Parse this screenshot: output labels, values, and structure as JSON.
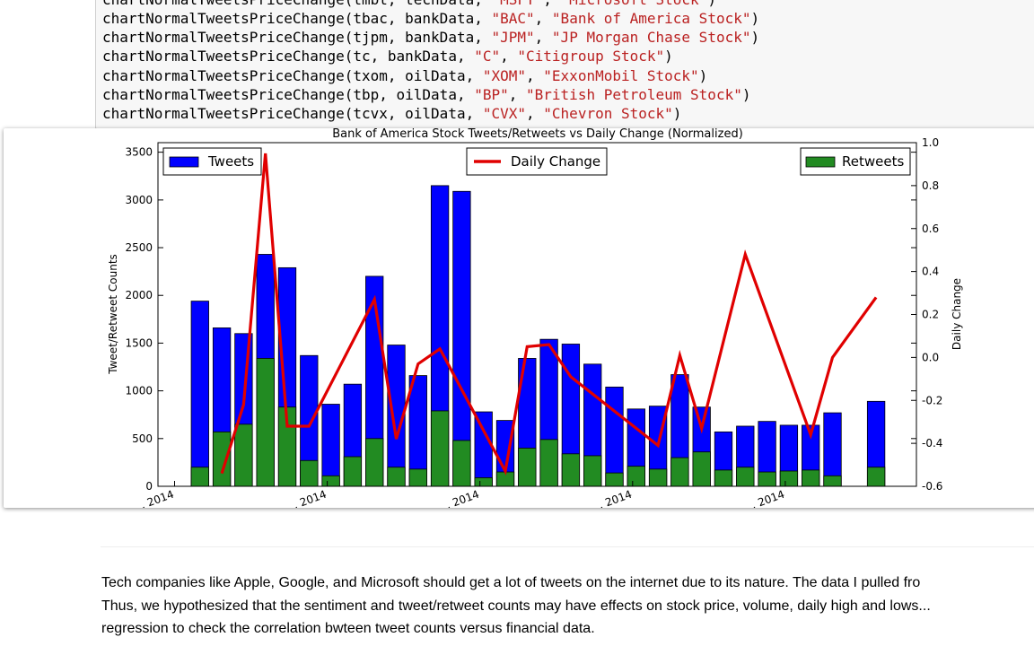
{
  "code_cell": {
    "lines": [
      {
        "fn": "chartNormalTweetsPriceChange(tmbt, techData, ",
        "sym": "\"MSFT\"",
        "mid": ", ",
        "name": "\"Microsoft Stock\"",
        "end": ")"
      },
      {
        "fn": "chartNormalTweetsPriceChange(tbac, bankData, ",
        "sym": "\"BAC\"",
        "mid": ", ",
        "name": "\"Bank of America Stock\"",
        "end": ")"
      },
      {
        "fn": "chartNormalTweetsPriceChange(tjpm, bankData, ",
        "sym": "\"JPM\"",
        "mid": ", ",
        "name": "\"JP Morgan Chase Stock\"",
        "end": ")"
      },
      {
        "fn": "chartNormalTweetsPriceChange(tc, bankData, ",
        "sym": "\"C\"",
        "mid": ", ",
        "name": "\"Citigroup Stock\"",
        "end": ")"
      },
      {
        "fn": "chartNormalTweetsPriceChange(txom, oilData, ",
        "sym": "\"XOM\"",
        "mid": ", ",
        "name": "\"ExxonMobil Stock\"",
        "end": ")"
      },
      {
        "fn": "chartNormalTweetsPriceChange(tbp, oilData, ",
        "sym": "\"BP\"",
        "mid": ", ",
        "name": "\"British Petroleum Stock\"",
        "end": ")"
      },
      {
        "fn": "chartNormalTweetsPriceChange(tcvx, oilData, ",
        "sym": "\"CVX\"",
        "mid": ", ",
        "name": "\"Chevron Stock\"",
        "end": ")"
      }
    ]
  },
  "chart_data": {
    "type": "bar",
    "title": "Bank of America Stock Tweets/Retweets vs Daily Change (Normalized)",
    "ylabel": "Tweet/Retweet Counts",
    "y2label": "Daily Change",
    "ylim": [
      0,
      3600
    ],
    "y2lim": [
      -0.6,
      1.0
    ],
    "yticks": [
      0,
      500,
      1000,
      1500,
      2000,
      2500,
      3000,
      3500
    ],
    "y2ticks": [
      "-0.6",
      "-0.4",
      "-0.2",
      "0.0",
      "0.2",
      "0.4",
      "0.6",
      "0.8",
      "1.0"
    ],
    "y2tick_values": [
      -0.6,
      -0.4,
      -0.2,
      0.0,
      0.2,
      0.4,
      0.6,
      0.8,
      1.0
    ],
    "xtick_labels": [
      "... 2014",
      "... 2014",
      "... 2014",
      "... 2014",
      "... 2014"
    ],
    "xtick_index": [
      0,
      7,
      14,
      21,
      28
    ],
    "slot_count": 33,
    "legend": {
      "tweets": "Tweets",
      "daily_change": "Daily Change",
      "retweets": "Retweets"
    },
    "colors": {
      "tweets": "#0000ff",
      "retweets": "#228b22",
      "daily_change": "#e00000"
    },
    "series": [
      {
        "name": "Tweets",
        "values": [
          null,
          1940,
          1660,
          1600,
          2430,
          2290,
          1370,
          860,
          1070,
          2200,
          1480,
          1160,
          3150,
          3090,
          780,
          690,
          1340,
          1540,
          1490,
          1280,
          1040,
          810,
          840,
          1170,
          830,
          570,
          630,
          680,
          640,
          640,
          770,
          null,
          890
        ]
      },
      {
        "name": "Retweets",
        "values": [
          null,
          200,
          570,
          650,
          1340,
          830,
          270,
          110,
          310,
          500,
          200,
          180,
          790,
          480,
          90,
          150,
          400,
          490,
          340,
          320,
          140,
          210,
          180,
          300,
          360,
          170,
          200,
          150,
          160,
          170,
          110,
          null,
          200
        ]
      },
      {
        "name": "Daily Change",
        "values": [
          null,
          null,
          -0.54,
          -0.22,
          0.95,
          -0.32,
          -0.32,
          null,
          null,
          0.27,
          -0.38,
          -0.03,
          0.04,
          null,
          null,
          -0.53,
          0.05,
          0.06,
          -0.09,
          null,
          null,
          null,
          -0.41,
          0.01,
          -0.33,
          null,
          0.48,
          null,
          null,
          -0.36,
          0.0,
          null,
          0.28
        ]
      }
    ]
  },
  "markdown": {
    "line1": "Tech companies like Apple, Google, and Microsoft should get a lot of tweets on the internet due to its nature. The data I pulled fro",
    "line2": "Thus, we hypothesized that the sentiment and tweet/retweet counts may have effects on stock price, volume, daily high and lows...",
    "line3": "regression to check the correlation bwteen tweet counts versus financial data."
  }
}
